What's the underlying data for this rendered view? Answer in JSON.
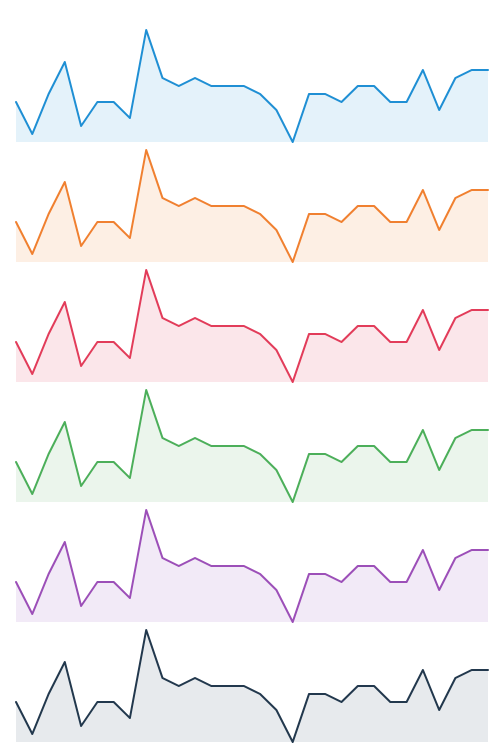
{
  "chart_data": [
    {
      "type": "area",
      "color": "#1f8fd4",
      "fill": "#e4f2fa",
      "values": [
        5,
        1,
        6,
        10,
        2,
        5,
        5,
        3,
        14,
        8,
        7,
        8,
        7,
        7,
        7,
        6,
        4,
        0,
        6,
        6,
        5,
        7,
        7,
        5,
        5,
        9,
        4,
        8,
        9,
        9
      ]
    },
    {
      "type": "area",
      "color": "#f08030",
      "fill": "#fdefe4",
      "values": [
        5,
        1,
        6,
        10,
        2,
        5,
        5,
        3,
        14,
        8,
        7,
        8,
        7,
        7,
        7,
        6,
        4,
        0,
        6,
        6,
        5,
        7,
        7,
        5,
        5,
        9,
        4,
        8,
        9,
        9
      ]
    },
    {
      "type": "area",
      "color": "#e23c5a",
      "fill": "#fbe6ea",
      "values": [
        5,
        1,
        6,
        10,
        2,
        5,
        5,
        3,
        14,
        8,
        7,
        8,
        7,
        7,
        7,
        6,
        4,
        0,
        6,
        6,
        5,
        7,
        7,
        5,
        5,
        9,
        4,
        8,
        9,
        9
      ]
    },
    {
      "type": "area",
      "color": "#4caf5a",
      "fill": "#ebf5ec",
      "values": [
        5,
        1,
        6,
        10,
        2,
        5,
        5,
        3,
        14,
        8,
        7,
        8,
        7,
        7,
        7,
        6,
        4,
        0,
        6,
        6,
        5,
        7,
        7,
        5,
        5,
        9,
        4,
        8,
        9,
        9
      ]
    },
    {
      "type": "area",
      "color": "#9c4fb8",
      "fill": "#f2eaf7",
      "values": [
        5,
        1,
        6,
        10,
        2,
        5,
        5,
        3,
        14,
        8,
        7,
        8,
        7,
        7,
        7,
        6,
        4,
        0,
        6,
        6,
        5,
        7,
        7,
        5,
        5,
        9,
        4,
        8,
        9,
        9
      ]
    },
    {
      "type": "area",
      "color": "#22384d",
      "fill": "#e7eaed",
      "values": [
        5,
        1,
        6,
        10,
        2,
        5,
        5,
        3,
        14,
        8,
        7,
        8,
        7,
        7,
        7,
        6,
        4,
        0,
        6,
        6,
        5,
        7,
        7,
        5,
        5,
        9,
        4,
        8,
        9,
        9
      ]
    }
  ]
}
